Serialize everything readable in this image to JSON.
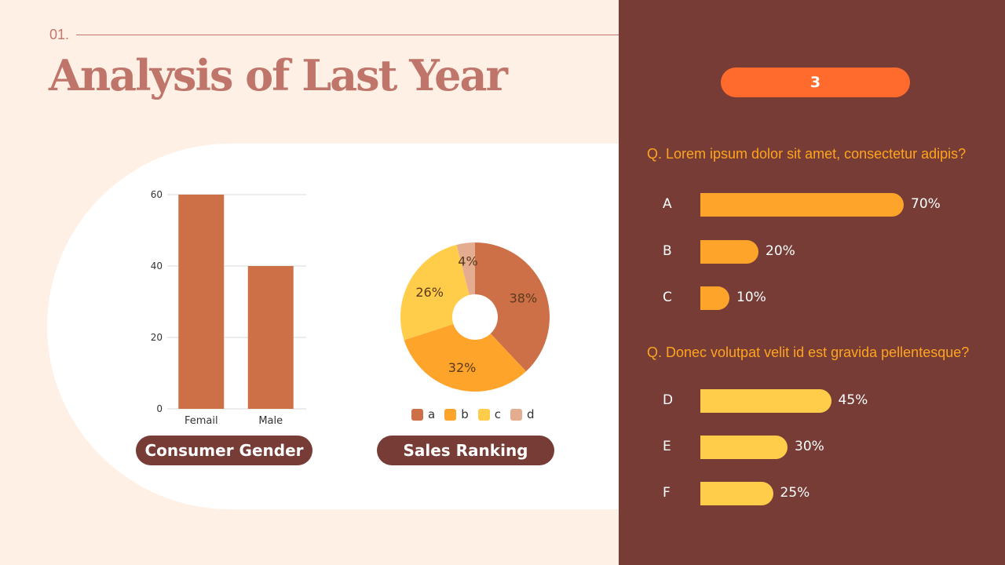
{
  "header": {
    "section_number": "01.",
    "title": "Analysis of Last Year"
  },
  "colors": {
    "bar": "#cd7048",
    "slice_a": "#cd7048",
    "slice_b": "#ffa42b",
    "slice_c": "#ffcd4a",
    "slice_d": "#e5ad90",
    "panel": "#763c35",
    "badge": "#ff6b2c",
    "option_bar_1": "#ffa42b",
    "option_bar_2": "#ffcd4a"
  },
  "chart_data": [
    {
      "type": "bar",
      "title": "Consumer Gender",
      "categories": [
        "Femail",
        "Male"
      ],
      "values": [
        60,
        40
      ],
      "ylim": [
        0,
        60
      ],
      "yticks": [
        0,
        20,
        40,
        60
      ],
      "grid": true
    },
    {
      "type": "pie",
      "title": "Sales Ranking",
      "donut": true,
      "slices": [
        {
          "label": "a",
          "value": 38,
          "display": "38%"
        },
        {
          "label": "b",
          "value": 32,
          "display": "32%"
        },
        {
          "label": "c",
          "value": 26,
          "display": "26%"
        },
        {
          "label": "d",
          "value": 4,
          "display": "4%"
        }
      ],
      "legend": "bottom"
    }
  ],
  "panel": {
    "badge": "3",
    "questions": [
      {
        "text": "Q. Lorem ipsum dolor sit amet, consectetur adipis?",
        "options": [
          {
            "letter": "A",
            "value": 70,
            "label": "70%"
          },
          {
            "letter": "B",
            "value": 20,
            "label": "20%"
          },
          {
            "letter": "C",
            "value": 10,
            "label": "10%"
          }
        ]
      },
      {
        "text": "Q. Donec volutpat velit id est gravida pellentesque?",
        "options": [
          {
            "letter": "D",
            "value": 45,
            "label": "45%"
          },
          {
            "letter": "E",
            "value": 30,
            "label": "30%"
          },
          {
            "letter": "F",
            "value": 25,
            "label": "25%"
          }
        ]
      }
    ]
  }
}
